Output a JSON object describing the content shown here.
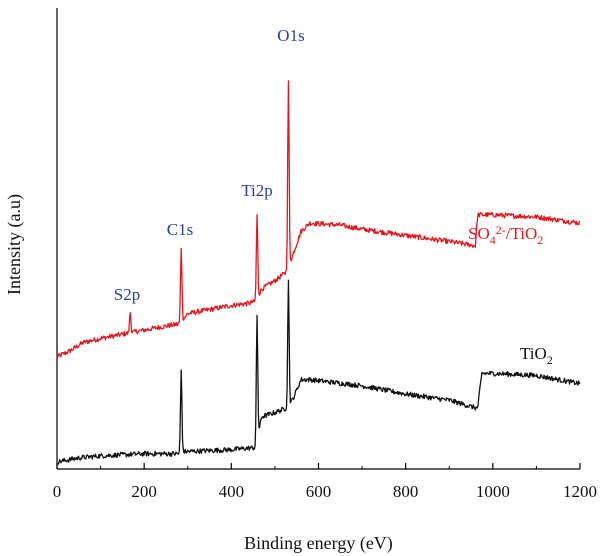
{
  "chart_data": {
    "type": "line",
    "title": "",
    "xlabel": "Binding energy (eV)",
    "ylabel": "Intensity (a.u)",
    "xlim": [
      0,
      1200
    ],
    "xticks": [
      0,
      200,
      400,
      600,
      800,
      1000,
      1200
    ],
    "yticks_shown": false,
    "grid": false,
    "colors": {
      "sulfated": "#e8141c",
      "pure": "#111111",
      "peak_label": "#2a3f9a",
      "axis": "#000000"
    },
    "series": [
      {
        "key": "sulfated",
        "name": "SO42-/TiO2",
        "label_parts": {
          "base": "SO",
          "sub": "4",
          "sup": "2-",
          "tail": "/TiO",
          "tail_sub": "2"
        },
        "baseline": [
          [
            0,
            0.255
          ],
          [
            30,
            0.27
          ],
          [
            60,
            0.29
          ],
          [
            100,
            0.3
          ],
          [
            150,
            0.31
          ],
          [
            200,
            0.32
          ],
          [
            250,
            0.33
          ],
          [
            280,
            0.335
          ],
          [
            300,
            0.36
          ],
          [
            350,
            0.37
          ],
          [
            400,
            0.38
          ],
          [
            440,
            0.385
          ],
          [
            455,
            0.39
          ],
          [
            470,
            0.42
          ],
          [
            500,
            0.44
          ],
          [
            525,
            0.46
          ],
          [
            540,
            0.5
          ],
          [
            560,
            0.56
          ],
          [
            580,
            0.58
          ],
          [
            650,
            0.575
          ],
          [
            700,
            0.565
          ],
          [
            800,
            0.55
          ],
          [
            900,
            0.535
          ],
          [
            960,
            0.525
          ],
          [
            965,
            0.6
          ],
          [
            1000,
            0.6
          ],
          [
            1100,
            0.595
          ],
          [
            1200,
            0.58
          ]
        ],
        "peaks": [
          {
            "label": "S2p",
            "x": 168,
            "height": 0.05
          },
          {
            "label": "C1s",
            "x": 285,
            "height": 0.18
          },
          {
            "label": "Ti2p",
            "x": 459,
            "height": 0.2
          },
          {
            "label": "O1s",
            "x": 531,
            "height": 0.45
          }
        ]
      },
      {
        "key": "pure",
        "name": "TiO2",
        "label_parts": {
          "base": "TiO",
          "sub": "2"
        },
        "baseline": [
          [
            0,
            0.0
          ],
          [
            50,
            0.01
          ],
          [
            100,
            0.015
          ],
          [
            200,
            0.02
          ],
          [
            280,
            0.02
          ],
          [
            290,
            0.025
          ],
          [
            400,
            0.03
          ],
          [
            455,
            0.035
          ],
          [
            470,
            0.11
          ],
          [
            500,
            0.12
          ],
          [
            525,
            0.13
          ],
          [
            540,
            0.15
          ],
          [
            560,
            0.2
          ],
          [
            580,
            0.2
          ],
          [
            700,
            0.185
          ],
          [
            800,
            0.165
          ],
          [
            900,
            0.15
          ],
          [
            965,
            0.13
          ],
          [
            975,
            0.215
          ],
          [
            1000,
            0.215
          ],
          [
            1100,
            0.21
          ],
          [
            1200,
            0.19
          ]
        ],
        "peaks": [
          {
            "label": "",
            "x": 285,
            "height": 0.2
          },
          {
            "label": "",
            "x": 459,
            "height": 0.3
          },
          {
            "label": "",
            "x": 531,
            "height": 0.3
          }
        ]
      }
    ]
  }
}
